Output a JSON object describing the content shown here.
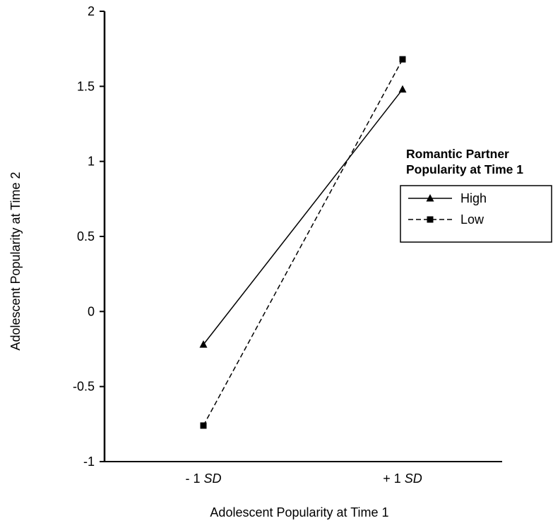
{
  "chart_data": {
    "type": "line",
    "xlabel": "Adolescent Popularity at Time 1",
    "ylabel": "Adolescent Popularity at Time 2",
    "categories": [
      {
        "prefix": "- 1 ",
        "suffix": "SD"
      },
      {
        "prefix": "+ 1 ",
        "suffix": "SD"
      }
    ],
    "ylim": [
      -1,
      2
    ],
    "yticks": [
      "-1",
      "-0.5",
      "0",
      "0.5",
      "1",
      "1.5",
      "2"
    ],
    "grid": false,
    "legend": {
      "title_line1": "Romantic Partner",
      "title_line2": "Popularity at Time 1",
      "placement": "right"
    },
    "series": [
      {
        "name": "High",
        "values": [
          -0.22,
          1.48
        ],
        "line": "solid",
        "marker": "triangle",
        "color": "#000000"
      },
      {
        "name": "Low",
        "values": [
          -0.76,
          1.68
        ],
        "line": "dashed",
        "marker": "square",
        "color": "#000000"
      }
    ]
  }
}
